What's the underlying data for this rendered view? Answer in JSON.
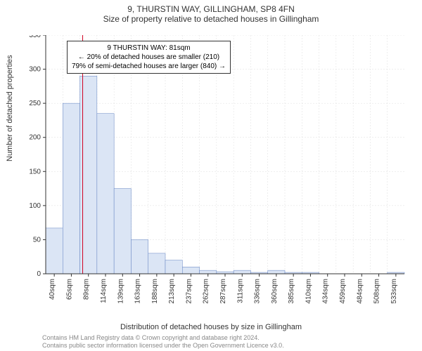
{
  "header": {
    "line1": "9, THURSTIN WAY, GILLINGHAM, SP8 4FN",
    "line2": "Size of property relative to detached houses in Gillingham"
  },
  "axes": {
    "ylabel": "Number of detached properties",
    "xlabel": "Distribution of detached houses by size in Gillingham",
    "ymax": 350,
    "ytick_step": 50,
    "yticks": [
      0,
      50,
      100,
      150,
      200,
      250,
      300,
      350
    ],
    "xticks": [
      "40sqm",
      "65sqm",
      "89sqm",
      "114sqm",
      "139sqm",
      "163sqm",
      "188sqm",
      "213sqm",
      "237sqm",
      "262sqm",
      "287sqm",
      "311sqm",
      "336sqm",
      "360sqm",
      "385sqm",
      "410sqm",
      "434sqm",
      "459sqm",
      "484sqm",
      "508sqm",
      "533sqm"
    ]
  },
  "chart": {
    "type": "histogram",
    "bar_fill": "#dbe5f5",
    "bar_stroke": "#6080c0",
    "background": "#ffffff",
    "grid_color": "#dddddd",
    "values": [
      67,
      250,
      290,
      235,
      125,
      50,
      30,
      20,
      10,
      5,
      3,
      5,
      2,
      5,
      2,
      2,
      0,
      0,
      0,
      0,
      2
    ],
    "reference_line": {
      "value_sqm": 81,
      "color": "#d00020"
    }
  },
  "callout": {
    "line1": "9 THURSTIN WAY: 81sqm",
    "line2": "← 20% of detached houses are smaller (210)",
    "line3": "79% of semi-detached houses are larger (840) →"
  },
  "footer": {
    "line1": "Contains HM Land Registry data © Crown copyright and database right 2024.",
    "line2": "Contains public sector information licensed under the Open Government Licence v3.0."
  }
}
